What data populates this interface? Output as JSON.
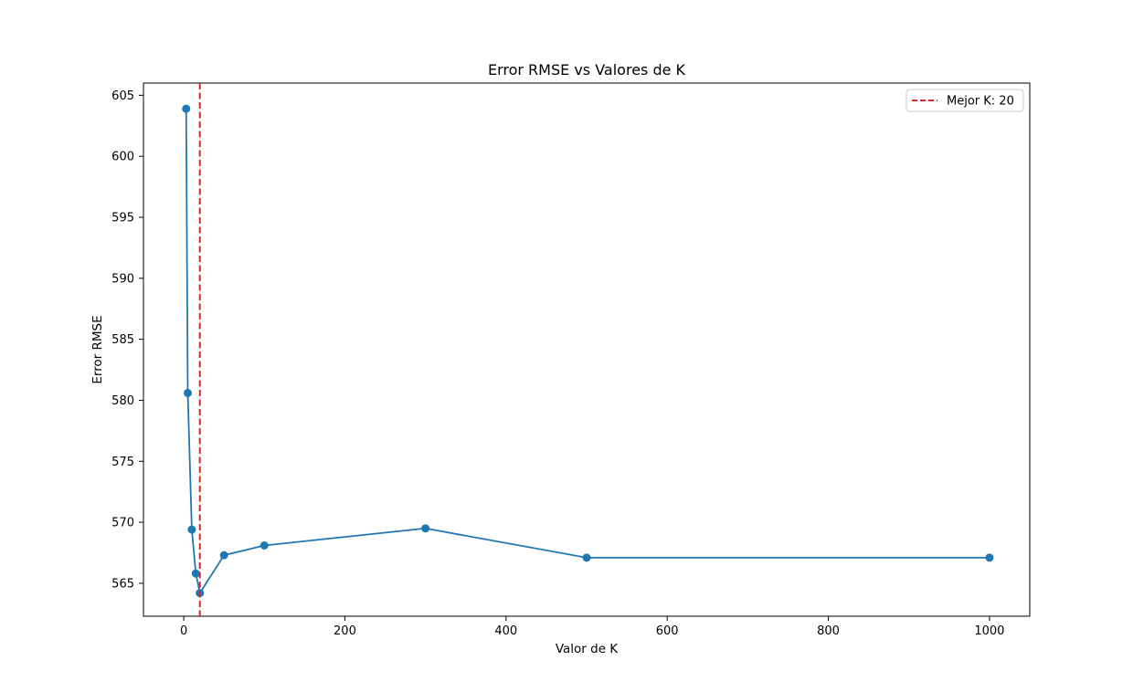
{
  "chart_data": {
    "type": "line",
    "title": "Error RMSE vs Valores de K",
    "xlabel": "Valor de K",
    "ylabel": "Error RMSE",
    "xlim": [
      -50,
      1050
    ],
    "ylim": [
      562.3,
      606
    ],
    "xticks": [
      0,
      200,
      400,
      600,
      800,
      1000
    ],
    "yticks": [
      565,
      570,
      575,
      580,
      585,
      590,
      595,
      600,
      605
    ],
    "grid": false,
    "legend_position": "top-right",
    "series": [
      {
        "x": [
          3,
          5,
          10,
          15,
          20,
          50,
          100,
          300,
          500,
          1000
        ],
        "y": [
          603.9,
          580.6,
          569.4,
          565.8,
          564.2,
          567.3,
          568.1,
          569.5,
          567.1,
          567.1
        ],
        "color": "#1f77b4",
        "marker": "circle"
      }
    ],
    "reference_lines": [
      {
        "orientation": "vertical",
        "x": 20,
        "label": "Mejor K: 20",
        "color": "#d62728",
        "style": "dashed"
      }
    ]
  }
}
